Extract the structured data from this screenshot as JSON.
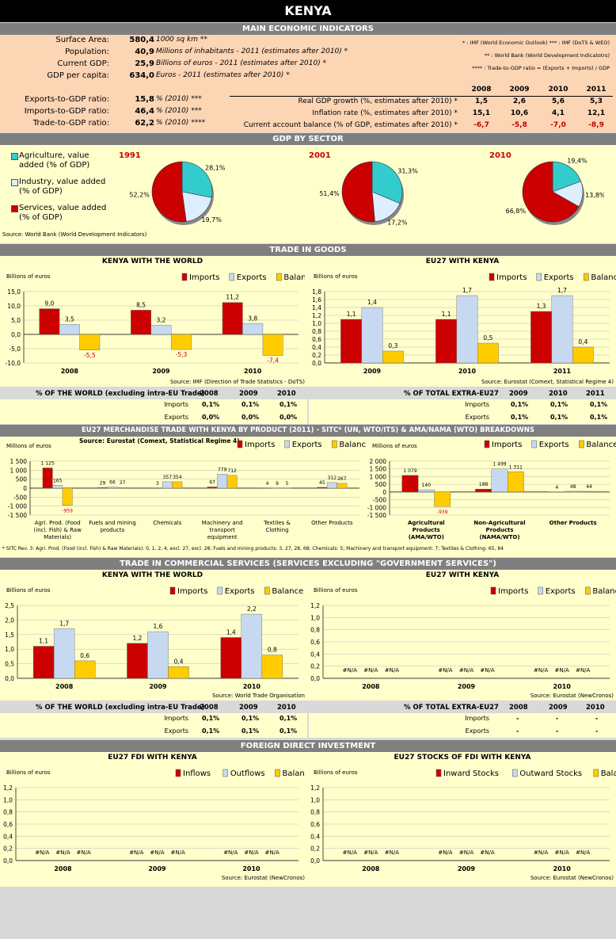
{
  "title": "KENYA",
  "colors": {
    "imports": "#cc0000",
    "exports": "#c6d9f1",
    "balance": "#ffcc00",
    "agri": "#33cccc",
    "industry": "#ddeeff",
    "services": "#cc0000"
  },
  "mei": {
    "header": "MAIN ECONOMIC INDICATORS",
    "rows": [
      {
        "label": "Surface Area:",
        "value": "580,4",
        "desc": "1000 sq km **"
      },
      {
        "label": "Population:",
        "value": "40,9",
        "desc": "Millions of inhabitants - 2011 (estimates after 2010) *"
      },
      {
        "label": "Current GDP:",
        "value": "25,9",
        "desc": "Billions of euros - 2011 (estimates after 2010) *"
      },
      {
        "label": "GDP per capita:",
        "value": "634,0",
        "desc": "Euros - 2011 (estimates after 2010) *"
      },
      {
        "label": "Exports-to-GDP ratio:",
        "value": "15,8",
        "desc": "% (2010) ***"
      },
      {
        "label": "Imports-to-GDP ratio:",
        "value": "46,4",
        "desc": "% (2010) ***"
      },
      {
        "label": "Trade-to-GDP ratio:",
        "value": "62,2",
        "desc": "% (2010) ****"
      }
    ],
    "notes": [
      "* : IMF (World Economic Outlook)     *** : IMF (DoTS & WEO)",
      "** : World Bank (World Development Indicatotrs)",
      "**** : Trade-to-GDP ratio = (Exports + Imports) / GDP"
    ],
    "years": [
      "2008",
      "2009",
      "2010",
      "2011"
    ],
    "indicators": [
      {
        "label": "Real GDP growth (%, estimates after 2010) *",
        "values": [
          "1,5",
          "2,6",
          "5,6",
          "5,3"
        ]
      },
      {
        "label": "Inflation rate (%, estimates after 2010) *",
        "values": [
          "15,1",
          "10,6",
          "4,1",
          "12,1"
        ]
      },
      {
        "label": "Current account balance (% of GDP, estimates after 2010) *",
        "values": [
          "-6,7",
          "-5,8",
          "-7,0",
          "-8,9"
        ]
      }
    ]
  },
  "gdp": {
    "header": "GDP BY SECTOR",
    "legend": [
      "Agriculture, value added (% of GDP)",
      "Industry, value added (% of GDP)",
      "Services, value added (% of GDP)"
    ],
    "source": "Source: World Bank (World Development Indicators)"
  },
  "trade": {
    "header": "TRADE IN GOODS",
    "left_title": "KENYA WITH THE WORLD",
    "right_title": "EU27 WITH KENYA",
    "left_source": "Source: IMF (Direction of Trade Statistics - DoTS)",
    "right_source": "Source: Eurostat (Comext, Statistical Regime 4)",
    "left_table": {
      "head": "% OF THE WORLD (excluding intra-EU Trade)",
      "years": [
        "2008",
        "2009",
        "2010"
      ],
      "rows": [
        {
          "label": "Imports",
          "values": [
            "0,1%",
            "0,1%",
            "0,1%"
          ]
        },
        {
          "label": "Exports",
          "values": [
            "0,0%",
            "0,0%",
            "0,0%"
          ]
        }
      ]
    },
    "right_table": {
      "head": "% OF TOTAL EXTRA-EU27",
      "years": [
        "2009",
        "2010",
        "2011"
      ],
      "rows": [
        {
          "label": "Imports",
          "values": [
            "0,1%",
            "0,1%",
            "0,1%"
          ]
        },
        {
          "label": "Exports",
          "values": [
            "0,1%",
            "0,1%",
            "0,1%"
          ]
        }
      ]
    }
  },
  "merch": {
    "header": "EU27 MERCHANDISE TRADE WITH KENYA BY PRODUCT (2011) - SITC* (UN, WTO/ITS) & AMA/NAMA (WTO) BREAKDOWNS",
    "source": "Source: Eurostat (Comext, Statistical Regime 4)",
    "footnote": "* SITC Rev. 3: Agri. Prod. (Food (incl. Fish) & Raw Materials): 0, 1, 2, 4, excl. 27, excl. 28; Fuels and mining products: 3, 27, 28, 68; Chemicals: 5; Machinery and transport equipment: 7; Textiles & Clothing: 65, 84"
  },
  "services": {
    "header": "TRADE IN COMMERCIAL SERVICES (SERVICES EXCLUDING \"GOVERNMENT SERVICES\")",
    "left_title": "KENYA WITH THE WORLD",
    "right_title": "EU27 WITH KENYA",
    "left_source": "Source: World Trade Organisation",
    "right_source": "Source: Eurostat (NewCronos)",
    "left_table": {
      "head": "% OF THE WORLD (excluding intra-EU Trade)",
      "years": [
        "2008",
        "2009",
        "2010"
      ],
      "rows": [
        {
          "label": "Imports",
          "values": [
            "0,1%",
            "0,1%",
            "0,1%"
          ]
        },
        {
          "label": "Exports",
          "values": [
            "0,1%",
            "0,1%",
            "0,1%"
          ]
        }
      ]
    },
    "right_table": {
      "head": "% OF TOTAL EXTRA-EU27",
      "years": [
        "2008",
        "2009",
        "2010"
      ],
      "rows": [
        {
          "label": "Imports",
          "values": [
            "-",
            "-",
            "-"
          ]
        },
        {
          "label": "Exports",
          "values": [
            "-",
            "-",
            "-"
          ]
        }
      ]
    }
  },
  "fdi": {
    "header": "FOREIGN DIRECT INVESTMENT",
    "left_title": "EU27 FDI WITH KENYA",
    "right_title": "EU27 STOCKS OF FDI WITH KENYA",
    "left_source": "Source: Eurostat (NewCronos)",
    "right_source": "Source: Eurostat (NewCronos)"
  },
  "chart_data": [
    {
      "type": "pie",
      "title": "1991",
      "labels": [
        "Agriculture, value added (% of GDP)",
        "Industry, value added (% of GDP)",
        "Services, value added (% of GDP)"
      ],
      "values": [
        28.1,
        19.7,
        52.2
      ],
      "value_labels": [
        "28,1%",
        "19,7%",
        "52,2%"
      ]
    },
    {
      "type": "pie",
      "title": "2001",
      "labels": [
        "Agriculture, value added (% of GDP)",
        "Industry, value added (% of GDP)",
        "Services, value added (% of GDP)"
      ],
      "values": [
        31.3,
        17.2,
        51.4
      ],
      "value_labels": [
        "31,3%",
        "17,2%",
        "51,4%"
      ]
    },
    {
      "type": "pie",
      "title": "2010",
      "labels": [
        "Agriculture, value added (% of GDP)",
        "Industry, value added (% of GDP)",
        "Services, value added (% of GDP)"
      ],
      "values": [
        19.4,
        13.8,
        66.8
      ],
      "value_labels": [
        "19,4%",
        "13,8%",
        "66,8%"
      ]
    },
    {
      "type": "bar",
      "ylabel": "Billions of euros",
      "categories": [
        "2008",
        "2009",
        "2010"
      ],
      "ylim": [
        -10,
        15
      ],
      "ticks": [
        "-10,0",
        "-5,0",
        "0,0",
        "5,0",
        "10,0",
        "15,0"
      ],
      "series": [
        {
          "name": "Imports",
          "values": [
            9.0,
            8.5,
            11.2
          ],
          "labels": [
            "9,0",
            "8,5",
            "11,2"
          ]
        },
        {
          "name": "Exports",
          "values": [
            3.5,
            3.2,
            3.8
          ],
          "labels": [
            "3,5",
            "3,2",
            "3,8"
          ]
        },
        {
          "name": "Balance",
          "values": [
            -5.5,
            -5.3,
            -7.4
          ],
          "labels": [
            "-5,5",
            "-5,3",
            "-7,4"
          ]
        }
      ]
    },
    {
      "type": "bar",
      "ylabel": "Billions of euros",
      "categories": [
        "2009",
        "2010",
        "2011"
      ],
      "ylim": [
        0,
        1.8
      ],
      "ticks": [
        "0,0",
        "0,2",
        "0,4",
        "0,6",
        "0,8",
        "1,0",
        "1,2",
        "1,4",
        "1,6",
        "1,8"
      ],
      "series": [
        {
          "name": "Imports",
          "values": [
            1.1,
            1.1,
            1.3
          ],
          "labels": [
            "1,1",
            "1,1",
            "1,3"
          ]
        },
        {
          "name": "Exports",
          "values": [
            1.4,
            1.7,
            1.7
          ],
          "labels": [
            "1,4",
            "1,7",
            "1,7"
          ]
        },
        {
          "name": "Balance",
          "values": [
            0.3,
            0.5,
            0.4
          ],
          "labels": [
            "0,3",
            "0,5",
            "0,4"
          ]
        }
      ]
    },
    {
      "type": "bar",
      "ylabel": "Millions of euros",
      "categories": [
        "Agri. Prod. (Food (incl. Fish) & Raw Materials)",
        "Fuels and mining products",
        "Chemicals",
        "Machinery and transport equipment",
        "Textiles & Clothing",
        "Other Products"
      ],
      "ylim": [
        -1500,
        1500
      ],
      "ticks": [
        "-1 500",
        "-1 000",
        "-500",
        "0",
        "500",
        "1 000",
        "1 500"
      ],
      "series": [
        {
          "name": "Imports",
          "values": [
            1125,
            29,
            3,
            67,
            4,
            45
          ],
          "labels": [
            "1 125",
            "29",
            "3",
            "67",
            "4",
            "45"
          ]
        },
        {
          "name": "Exports",
          "values": [
            165,
            66,
            357,
            779,
            9,
            312
          ],
          "labels": [
            "165",
            "66",
            "357",
            "779",
            "9",
            "312"
          ]
        },
        {
          "name": "Balance",
          "values": [
            -959,
            37,
            354,
            712,
            5,
            267
          ],
          "labels": [
            "-959",
            "37",
            "354",
            "712",
            "5",
            "267"
          ]
        }
      ]
    },
    {
      "type": "bar",
      "ylabel": "Millions of euros",
      "categories": [
        "Agricultural Products (AMA/WTO)",
        "Non-Agricultural Products (NAMA/WTO)",
        "Other Products"
      ],
      "ylim": [
        -1500,
        2000
      ],
      "ticks": [
        "-1 500",
        "-1 000",
        "-500",
        "0",
        "500",
        "1 000",
        "1 500",
        "2 000"
      ],
      "series": [
        {
          "name": "Imports",
          "values": [
            1079,
            188,
            4
          ],
          "labels": [
            "1 079",
            "188",
            "4"
          ]
        },
        {
          "name": "Exports",
          "values": [
            140,
            1499,
            48
          ],
          "labels": [
            "140",
            "1 499",
            "48"
          ]
        },
        {
          "name": "Balance",
          "values": [
            -939,
            1311,
            44
          ],
          "labels": [
            "-939",
            "1 311",
            "44"
          ]
        }
      ]
    },
    {
      "type": "bar",
      "ylabel": "Billions of euros",
      "categories": [
        "2008",
        "2009",
        "2010"
      ],
      "ylim": [
        0,
        2.5
      ],
      "ticks": [
        "0,0",
        "0,5",
        "1,0",
        "1,5",
        "2,0",
        "2,5"
      ],
      "series": [
        {
          "name": "Imports",
          "values": [
            1.1,
            1.2,
            1.4
          ],
          "labels": [
            "1,1",
            "1,2",
            "1,4"
          ]
        },
        {
          "name": "Exports",
          "values": [
            1.7,
            1.6,
            2.2
          ],
          "labels": [
            "1,7",
            "1,6",
            "2,2"
          ]
        },
        {
          "name": "Balance",
          "values": [
            0.6,
            0.4,
            0.8
          ],
          "labels": [
            "0,6",
            "0,4",
            "0,8"
          ]
        }
      ]
    },
    {
      "type": "bar",
      "ylabel": "Billions of euros",
      "categories": [
        "2008",
        "2009",
        "2010"
      ],
      "ylim": [
        0,
        1.2
      ],
      "ticks": [
        "0,0",
        "0,2",
        "0,4",
        "0,6",
        "0,8",
        "1,0",
        "1,2"
      ],
      "series": [
        {
          "name": "Imports",
          "values": [
            null,
            null,
            null
          ],
          "labels": [
            "#N/A",
            "#N/A",
            "#N/A"
          ]
        },
        {
          "name": "Exports",
          "values": [
            null,
            null,
            null
          ],
          "labels": [
            "#N/A",
            "#N/A",
            "#N/A"
          ]
        },
        {
          "name": "Balance",
          "values": [
            null,
            null,
            null
          ],
          "labels": [
            "#N/A",
            "#N/A",
            "#N/A"
          ]
        }
      ]
    },
    {
      "type": "bar",
      "ylabel": "Billions of euros",
      "categories": [
        "2008",
        "2009",
        "2010"
      ],
      "ylim": [
        0,
        1.2
      ],
      "ticks": [
        "0,0",
        "0,2",
        "0,4",
        "0,6",
        "0,8",
        "1,0",
        "1,2"
      ],
      "series": [
        {
          "name": "Inflows",
          "values": [
            null,
            null,
            null
          ],
          "labels": [
            "#N/A",
            "#N/A",
            "#N/A"
          ]
        },
        {
          "name": "Outflows",
          "values": [
            null,
            null,
            null
          ],
          "labels": [
            "#N/A",
            "#N/A",
            "#N/A"
          ]
        },
        {
          "name": "Balance",
          "values": [
            null,
            null,
            null
          ],
          "labels": [
            "#N/A",
            "#N/A",
            "#N/A"
          ]
        }
      ]
    },
    {
      "type": "bar",
      "ylabel": "Billions of euros",
      "categories": [
        "2008",
        "2009",
        "2010"
      ],
      "ylim": [
        0,
        1.2
      ],
      "ticks": [
        "0,0",
        "0,2",
        "0,4",
        "0,6",
        "0,8",
        "1,0",
        "1,2"
      ],
      "series": [
        {
          "name": "Inward Stocks",
          "values": [
            null,
            null,
            null
          ],
          "labels": [
            "#N/A",
            "#N/A",
            "#N/A"
          ]
        },
        {
          "name": "Outward Stocks",
          "values": [
            null,
            null,
            null
          ],
          "labels": [
            "#N/A",
            "#N/A",
            "#N/A"
          ]
        },
        {
          "name": "Balance",
          "values": [
            null,
            null,
            null
          ],
          "labels": [
            "#N/A",
            "#N/A",
            "#N/A"
          ]
        }
      ]
    }
  ]
}
